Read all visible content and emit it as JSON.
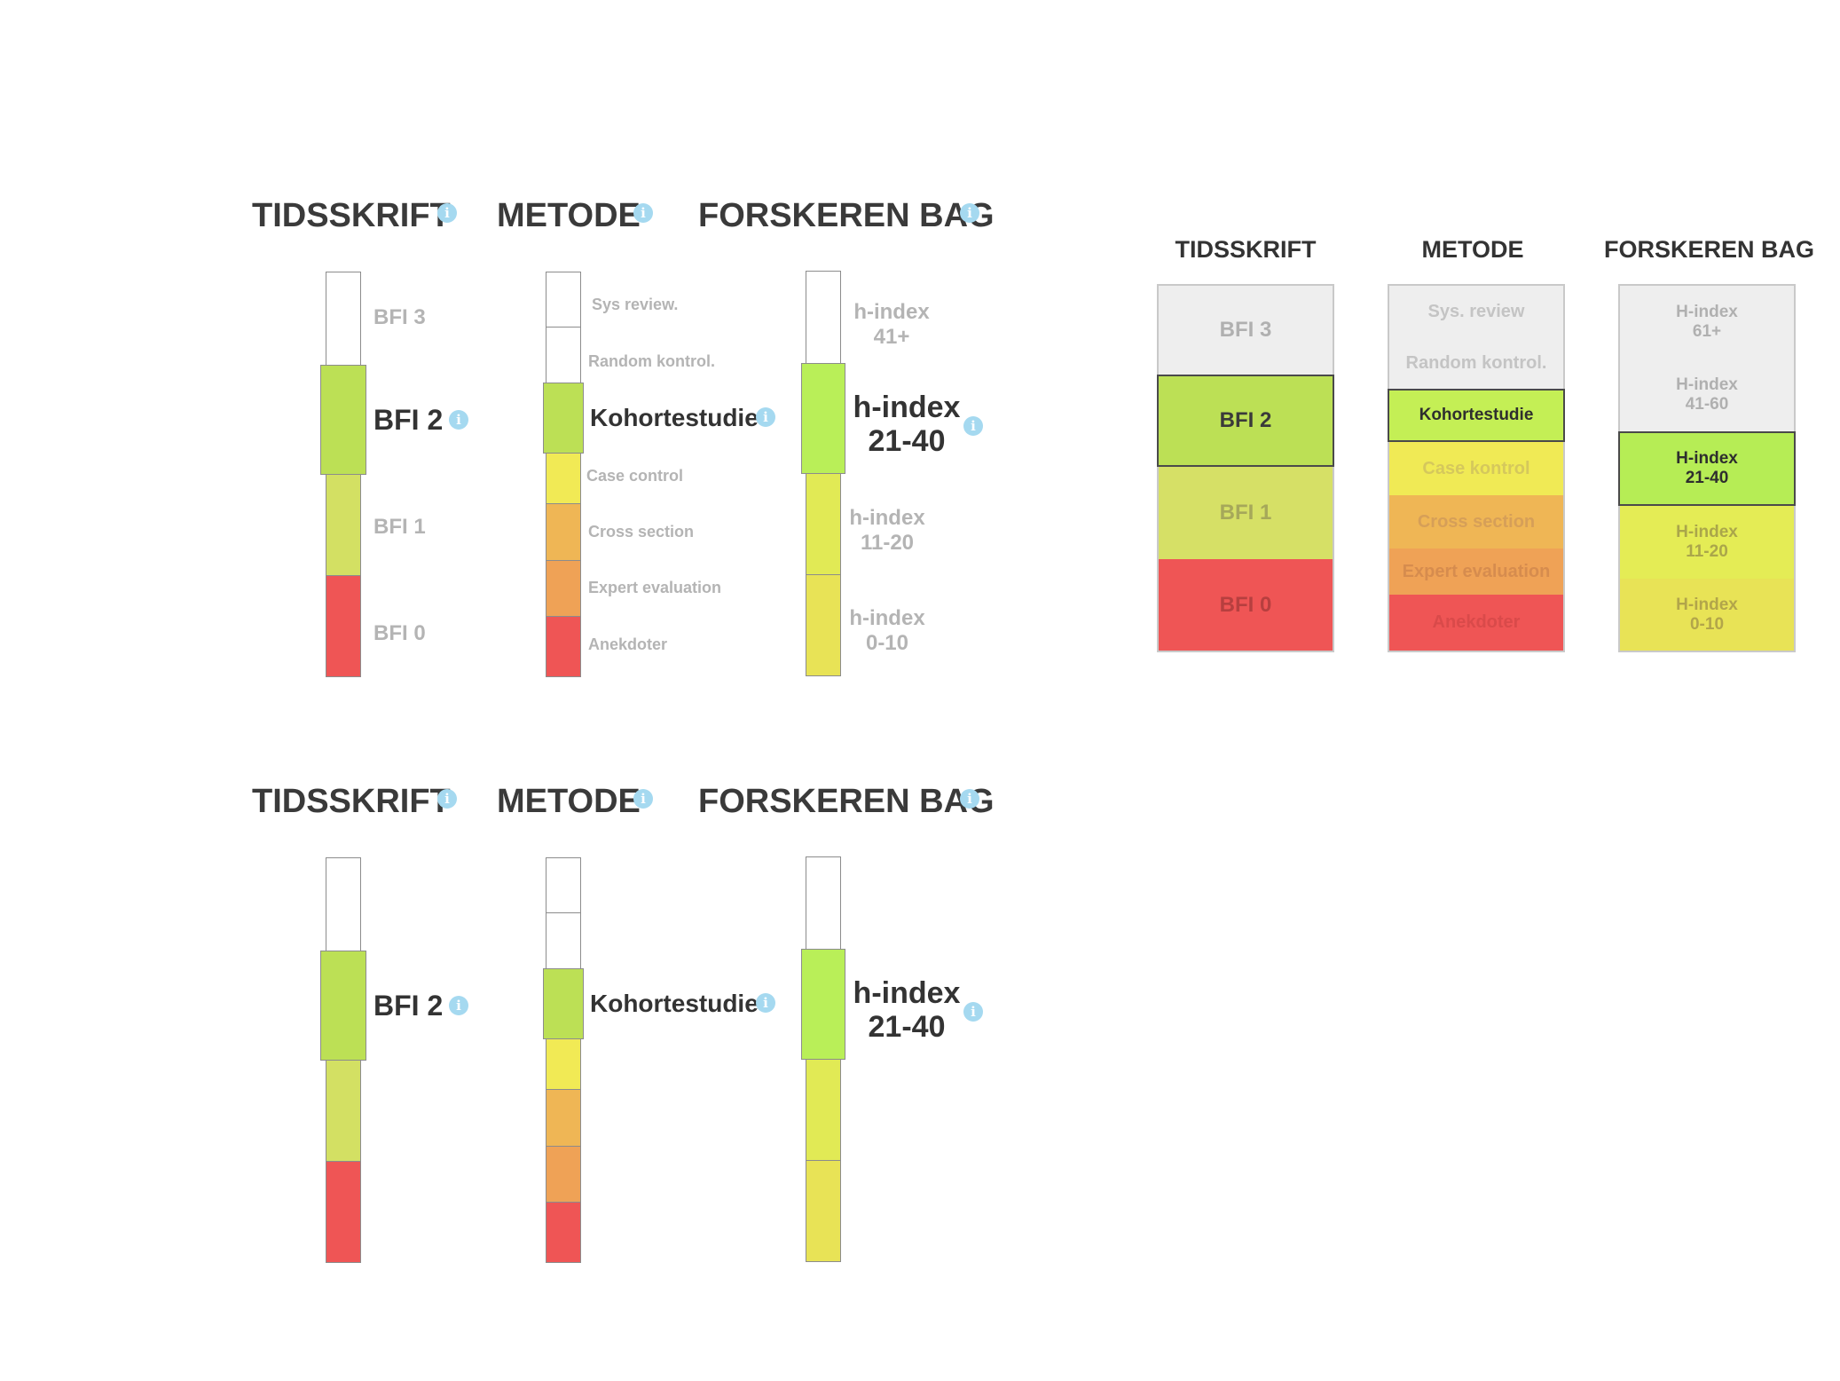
{
  "headers": {
    "tidsskrift": "TIDSSKRIFT",
    "metode": "METODE",
    "forskeren": "FORSKEREN BAG"
  },
  "info_glyph": "i",
  "colors": {
    "red": "#ef5555",
    "orange": "#efa256",
    "light_orange": "#efb655",
    "yellow": "#f1ea55",
    "lime": "#bce055",
    "olive_lime": "#d3e063",
    "bright_lime": "#b9ef58",
    "ochre_yellow": "#e8e356",
    "grey": "#eeeeee",
    "info": "#a5d9f0"
  },
  "labeled": {
    "tidsskrift": {
      "levels": [
        "BFI 3",
        "BFI 2",
        "BFI 1",
        "BFI 0"
      ],
      "active": "BFI 2"
    },
    "metode": {
      "levels": [
        "Sys review.",
        "Random kontrol.",
        "Kohortestudie",
        "Case control",
        "Cross section",
        "Expert evaluation",
        "Anekdoter"
      ],
      "active": "Kohortestudie"
    },
    "forskeren": {
      "levels": [
        {
          "line1": "h-index",
          "line2": "41+"
        },
        {
          "line1": "h-index",
          "line2": "21-40"
        },
        {
          "line1": "h-index",
          "line2": "11-20"
        },
        {
          "line1": "h-index",
          "line2": "0-10"
        }
      ]
    }
  },
  "compact": {
    "tidsskrift_active": "BFI 2",
    "metode_active": "Kohortestudie",
    "forskeren_active": {
      "line1": "h-index",
      "line2": "21-40"
    }
  },
  "alternative": {
    "tidsskrift": [
      "BFI 3",
      "BFI 2",
      "BFI 1",
      "BFI 0"
    ],
    "metode": [
      "Sys. review",
      "Random kontrol.",
      "Kohortestudie",
      "Case kontrol",
      "Cross section",
      "Expert evaluation",
      "Anekdoter"
    ],
    "forskeren": [
      {
        "line1": "H-index",
        "line2": "61+"
      },
      {
        "line1": "H-index",
        "line2": "41-60"
      },
      {
        "line1": "H-index",
        "line2": "21-40"
      },
      {
        "line1": "H-index",
        "line2": "11-20"
      },
      {
        "line1": "H-index",
        "line2": "0-10"
      }
    ]
  }
}
